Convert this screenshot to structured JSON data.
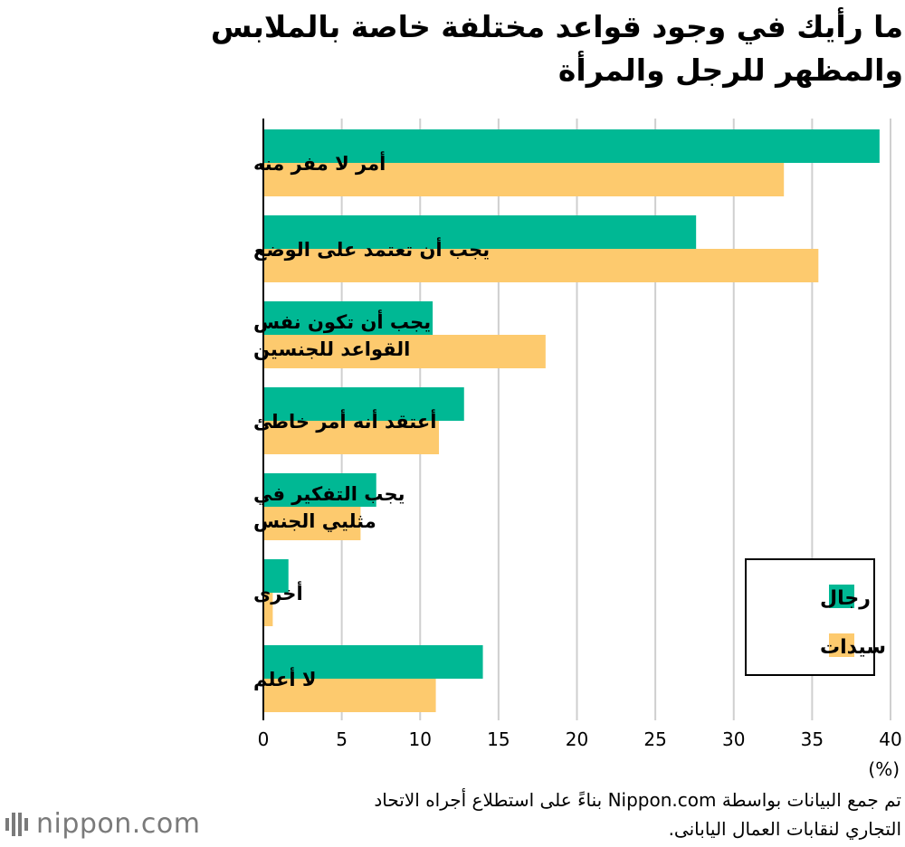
{
  "header": {
    "title_line1": "ما رأيك في وجود قواعد مختلفة خاصة بالملابس",
    "title_line2": "والمظهر للرجل والمرأة"
  },
  "chart_data": {
    "type": "bar",
    "orientation": "horizontal",
    "categories": [
      [
        "أمر لا مفر منه"
      ],
      [
        "يجب أن تعتمد على الوضع"
      ],
      [
        "يجب أن تكون نفس",
        "القواعد للجنسين"
      ],
      [
        "أعتقد أنه أمر خاطئ"
      ],
      [
        "يجب التفكير في",
        "مثليي الجنس"
      ],
      [
        "أخرى"
      ],
      [
        "لا أعلم"
      ]
    ],
    "series": [
      {
        "name": "رجال",
        "color": "#00b894",
        "values": [
          39.3,
          27.6,
          10.8,
          12.8,
          7.2,
          1.6,
          14.0
        ]
      },
      {
        "name": "سيدات",
        "color": "#fdca6e",
        "values": [
          33.2,
          35.4,
          18.0,
          11.2,
          6.2,
          0.6,
          11.0
        ]
      }
    ],
    "xlim": [
      0,
      40
    ],
    "xticks": [
      "0",
      "5",
      "10",
      "15",
      "20",
      "25",
      "30",
      "35",
      "40"
    ],
    "xlabel": "(%)",
    "grid": true,
    "legend_position": "bottom-right"
  },
  "footer": {
    "source_line1": "تم جمع البيانات بواسطة Nippon.com بناءً على استطلاع أجراه الاتحاد",
    "source_line2": "التجاري لنقابات العمال اليابانى.",
    "logo_text": "nippon.com"
  }
}
